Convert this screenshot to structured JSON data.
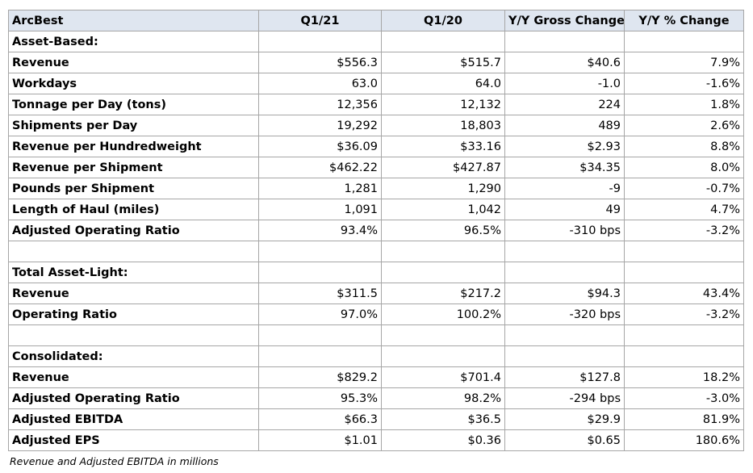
{
  "table": {
    "columns": [
      "ArcBest",
      "Q1/21",
      "Q1/20",
      "Y/Y Gross Change",
      "Y/Y % Change"
    ],
    "rows": [
      {
        "type": "section",
        "label": "Asset-Based:"
      },
      {
        "type": "data",
        "label": "Revenue",
        "values": [
          "$556.3",
          "$515.7",
          "$40.6",
          "7.9%"
        ]
      },
      {
        "type": "data",
        "label": "Workdays",
        "values": [
          "63.0",
          "64.0",
          "-1.0",
          "-1.6%"
        ]
      },
      {
        "type": "data",
        "label": "Tonnage per Day (tons)",
        "values": [
          "12,356",
          "12,132",
          "224",
          "1.8%"
        ]
      },
      {
        "type": "data",
        "label": "Shipments per Day",
        "values": [
          "19,292",
          "18,803",
          "489",
          "2.6%"
        ]
      },
      {
        "type": "data",
        "label": "Revenue per Hundredweight",
        "values": [
          "$36.09",
          "$33.16",
          "$2.93",
          "8.8%"
        ]
      },
      {
        "type": "data",
        "label": "Revenue per Shipment",
        "values": [
          "$462.22",
          "$427.87",
          "$34.35",
          "8.0%"
        ]
      },
      {
        "type": "data",
        "label": "Pounds per Shipment",
        "values": [
          "1,281",
          "1,290",
          "-9",
          "-0.7%"
        ]
      },
      {
        "type": "data",
        "label": "Length of Haul (miles)",
        "values": [
          "1,091",
          "1,042",
          "49",
          "4.7%"
        ]
      },
      {
        "type": "data",
        "label": "Adjusted Operating Ratio",
        "values": [
          "93.4%",
          "96.5%",
          "-310 bps",
          "-3.2%"
        ]
      },
      {
        "type": "blank"
      },
      {
        "type": "section",
        "label": "Total Asset-Light:"
      },
      {
        "type": "data",
        "label": "Revenue",
        "values": [
          "$311.5",
          "$217.2",
          "$94.3",
          "43.4%"
        ]
      },
      {
        "type": "data",
        "label": "Operating Ratio",
        "values": [
          "97.0%",
          "100.2%",
          "-320 bps",
          "-3.2%"
        ]
      },
      {
        "type": "blank"
      },
      {
        "type": "section",
        "label": "Consolidated:"
      },
      {
        "type": "data",
        "label": "Revenue",
        "values": [
          "$829.2",
          "$701.4",
          "$127.8",
          "18.2%"
        ]
      },
      {
        "type": "data",
        "label": "Adjusted Operating Ratio",
        "values": [
          "95.3%",
          "98.2%",
          "-294 bps",
          "-3.0%"
        ]
      },
      {
        "type": "data",
        "label": "Adjusted EBITDA",
        "values": [
          "$66.3",
          "$36.5",
          "$29.9",
          "81.9%"
        ]
      },
      {
        "type": "data",
        "label": "Adjusted EPS",
        "values": [
          "$1.01",
          "$0.36",
          "$0.65",
          "180.6%"
        ]
      }
    ]
  },
  "footnote": "Revenue and Adjusted EBITDA in millions"
}
